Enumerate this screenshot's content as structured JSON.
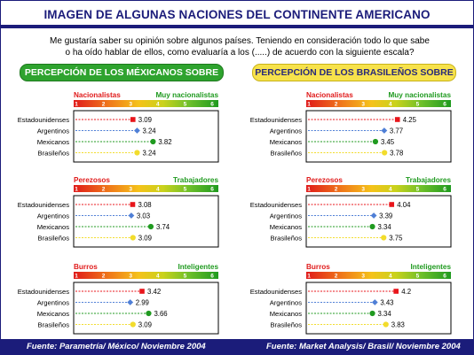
{
  "title": "IMAGEN DE ALGUNAS NACIONES DEL CONTINENTE AMERICANO",
  "intro": {
    "line1": "Me gustaría saber su opinión sobre algunos países. Teniendo en consideración todo lo que sabe",
    "line2": "o ha oído hablar de ellos, como evaluaría a los (.....) de acuerdo con la siguiente escala?"
  },
  "headers": {
    "mexicanos": "PERCEPCIÓN DE LOS MÉXICANOS SOBRE",
    "brasilenos": "PERCEPCIÓN DE LOS BRASILEÑOS SOBRE"
  },
  "footers": {
    "mexicanos": "Fuente: Parametría/ México/ Noviembre 2004",
    "brasilenos": "Fuente: Market Analysis/ Brasil/ Noviembre 2004"
  },
  "colors": {
    "Estadounidenses": "#e8151b",
    "Argentinos": "#4f7fd6",
    "Mexicanos": "#1f9a1f",
    "Brasileños": "#f2dc2c"
  },
  "chart_data": [
    {
      "type": "scatter",
      "panel": "mexicanos",
      "scale_ticks": [
        "1",
        "2",
        "3",
        "4",
        "5",
        "6"
      ],
      "xlim": [
        1,
        6
      ],
      "low_label": "Nacionalistas",
      "high_label": "Muy nacionalistas",
      "categories": [
        "Estadounidenses",
        "Argentinos",
        "Mexicanos",
        "Brasileños"
      ],
      "values": [
        3.09,
        3.24,
        3.82,
        3.24
      ]
    },
    {
      "type": "scatter",
      "panel": "brasilenos",
      "scale_ticks": [
        "1",
        "2",
        "3",
        "4",
        "5",
        "6"
      ],
      "xlim": [
        1,
        6
      ],
      "low_label": "Nacionalistas",
      "high_label": "Muy nacionalistas",
      "categories": [
        "Estadounidenses",
        "Argentinos",
        "Mexicanos",
        "Brasileños"
      ],
      "values": [
        4.25,
        3.77,
        3.45,
        3.78
      ]
    },
    {
      "type": "scatter",
      "panel": "mexicanos",
      "scale_ticks": [
        "1",
        "2",
        "3",
        "4",
        "5",
        "6"
      ],
      "xlim": [
        1,
        6
      ],
      "low_label": "Perezosos",
      "high_label": "Trabajadores",
      "categories": [
        "Estadounidenses",
        "Argentinos",
        "Mexicanos",
        "Brasileños"
      ],
      "values": [
        3.08,
        3.03,
        3.74,
        3.09
      ]
    },
    {
      "type": "scatter",
      "panel": "brasilenos",
      "scale_ticks": [
        "1",
        "2",
        "3",
        "4",
        "5",
        "6"
      ],
      "xlim": [
        1,
        6
      ],
      "low_label": "Perezosos",
      "high_label": "Trabajadores",
      "categories": [
        "Estadounidenses",
        "Argentinos",
        "Mexicanos",
        "Brasileños"
      ],
      "values": [
        4.04,
        3.39,
        3.34,
        3.75
      ]
    },
    {
      "type": "scatter",
      "panel": "mexicanos",
      "scale_ticks": [
        "1",
        "2",
        "3",
        "4",
        "5",
        "6"
      ],
      "xlim": [
        1,
        6
      ],
      "low_label": "Burros",
      "high_label": "Inteligentes",
      "categories": [
        "Estadounidenses",
        "Argentinos",
        "Mexicanos",
        "Brasileños"
      ],
      "values": [
        3.42,
        2.99,
        3.66,
        3.09
      ]
    },
    {
      "type": "scatter",
      "panel": "brasilenos",
      "scale_ticks": [
        "1",
        "2",
        "3",
        "4",
        "5",
        "6"
      ],
      "xlim": [
        1,
        6
      ],
      "low_label": "Burros",
      "high_label": "Inteligentes",
      "categories": [
        "Estadounidenses",
        "Argentinos",
        "Mexicanos",
        "Brasileños"
      ],
      "values": [
        4.2,
        3.43,
        3.34,
        3.83
      ]
    }
  ]
}
